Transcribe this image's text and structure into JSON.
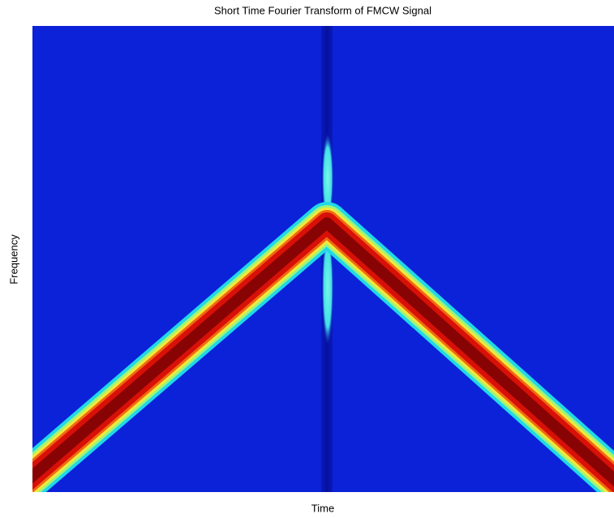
{
  "chart_data": {
    "type": "spectrogram",
    "title": "Short Time Fourier Transform of FMCW Signal",
    "xlabel": "Time",
    "ylabel": "Frequency"
  }
}
